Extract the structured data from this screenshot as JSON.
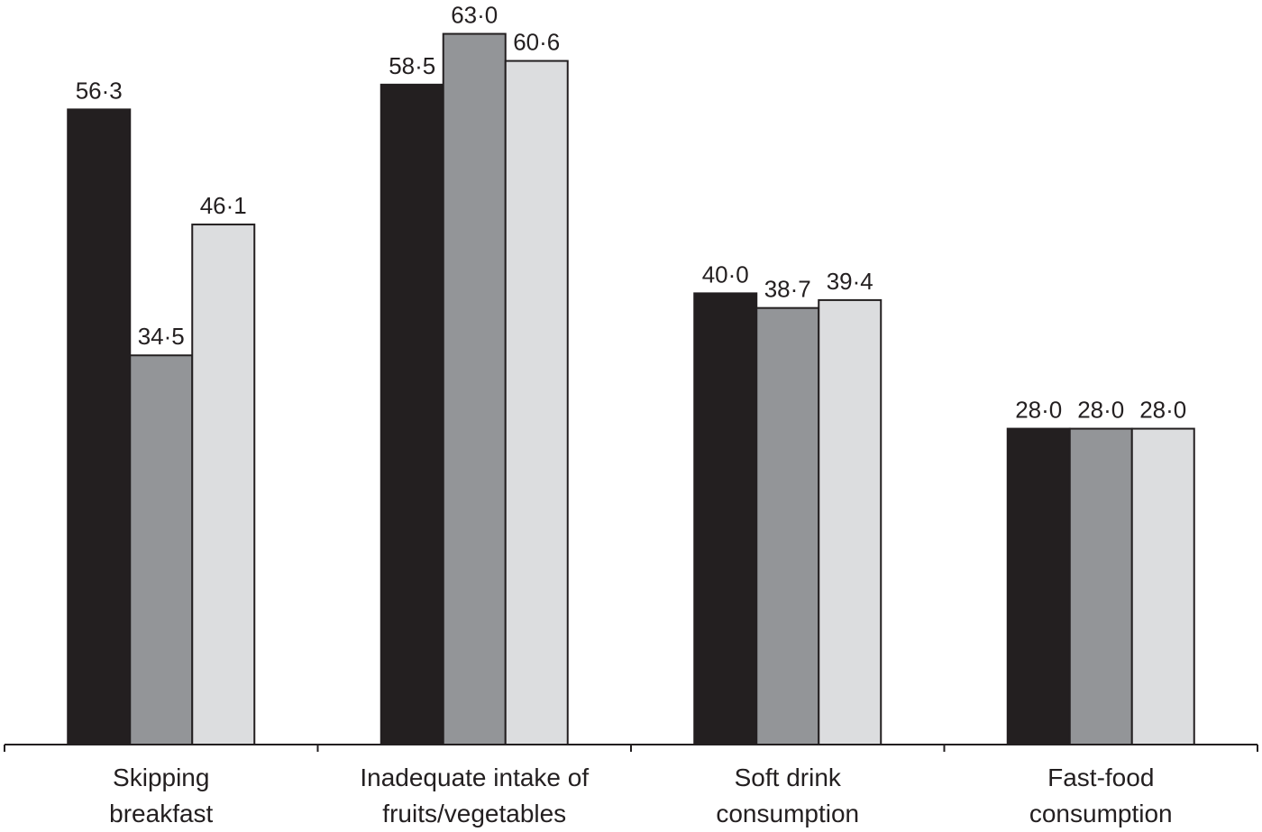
{
  "chart_data": {
    "type": "bar",
    "categories": [
      "Skipping\nbreakfast",
      "Inadequate intake of\nfruits/vegetables",
      "Soft drink\nconsumption",
      "Fast-food\nconsumption"
    ],
    "series": [
      {
        "color": "#231f20",
        "values": [
          56.3,
          58.5,
          40.0,
          28.0
        ],
        "value_labels": [
          "56·3",
          "58·5",
          "40·0",
          "28·0"
        ]
      },
      {
        "color": "#939598",
        "values": [
          34.5,
          63.0,
          38.7,
          28.0
        ],
        "value_labels": [
          "34·5",
          "63·0",
          "38·7",
          "28·0"
        ]
      },
      {
        "color": "#dcdddf",
        "values": [
          46.1,
          60.6,
          39.4,
          28.0
        ],
        "value_labels": [
          "46·1",
          "60·6",
          "39·4",
          "28·0"
        ]
      }
    ],
    "ylim": [
      0,
      66
    ]
  }
}
